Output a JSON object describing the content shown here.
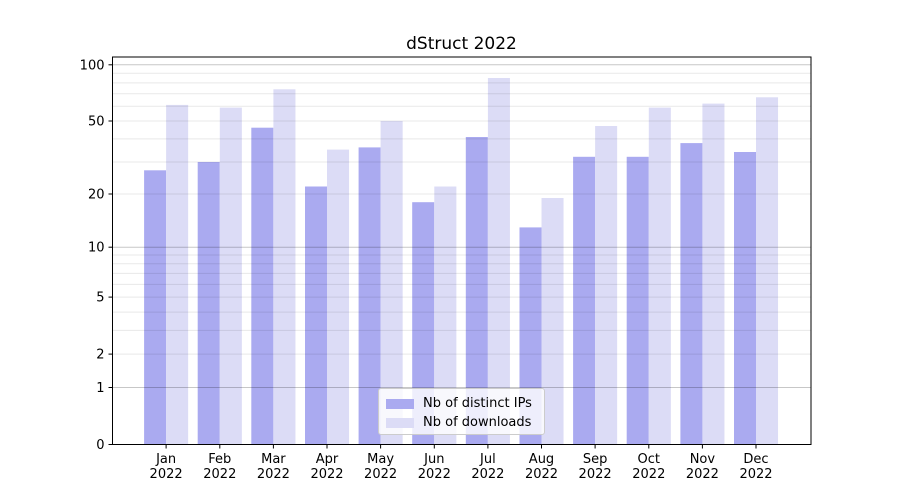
{
  "chart_data": {
    "type": "bar",
    "title": "dStruct 2022",
    "categories": [
      "Jan",
      "Feb",
      "Mar",
      "Apr",
      "May",
      "Jun",
      "Jul",
      "Aug",
      "Sep",
      "Oct",
      "Nov",
      "Dec"
    ],
    "year_label": "2022",
    "series": [
      {
        "name": "Nb of distinct IPs",
        "color": "#aaaaf0",
        "values": [
          27,
          30,
          46,
          22,
          36,
          18,
          41,
          13,
          32,
          32,
          38,
          34
        ]
      },
      {
        "name": "Nb of downloads",
        "color": "#dcdcf6",
        "values": [
          61,
          59,
          74,
          35,
          50,
          22,
          85,
          19,
          47,
          59,
          62,
          67
        ]
      }
    ],
    "xlabel": "",
    "ylabel": "",
    "yscale": "log1p",
    "ylim": [
      0,
      110
    ],
    "yticks": [
      0,
      1,
      2,
      5,
      10,
      20,
      50,
      100
    ],
    "grid": {
      "major_lines": [
        1,
        10,
        100
      ],
      "minor_lines": [
        2,
        3,
        4,
        5,
        6,
        7,
        8,
        9,
        20,
        30,
        40,
        50,
        60,
        70,
        80,
        90
      ],
      "major_color": "rgba(0,0,0,0.22)",
      "minor_color": "rgba(0,0,0,0.09)"
    },
    "legend_position": "lower center",
    "axis_color": "#000000",
    "background": "#ffffff"
  }
}
